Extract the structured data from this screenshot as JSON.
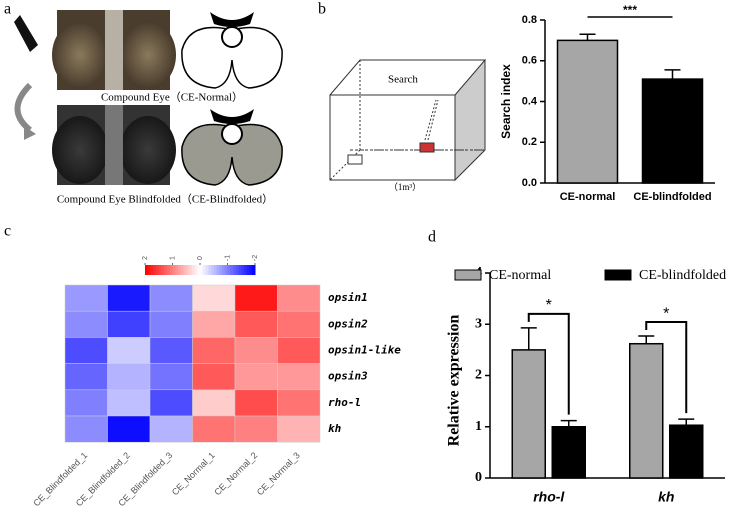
{
  "panel_labels": [
    "a",
    "b",
    "c",
    "d"
  ],
  "panel_a": {
    "caption_normal": "Compound Eye（CE-Normal）",
    "caption_blindfolded": "Compound Eye Blindfolded（CE-Blindfolded）"
  },
  "panel_b_diagram": {
    "box_label": "Search",
    "volume_label": "（1m³）"
  },
  "chart_data": [
    {
      "type": "bar",
      "ylabel": "Search index",
      "categories": [
        "CE-normal",
        "CE-blindfolded"
      ],
      "values": [
        0.7,
        0.51
      ],
      "errors": [
        0.03,
        0.045
      ],
      "colors": [
        "#a6a6a6",
        "#000000"
      ],
      "ylim": [
        0,
        0.8
      ],
      "yticks": [
        {
          "value": 0,
          "label": "0.0"
        },
        0.2,
        0.4,
        0.6,
        0.8
      ],
      "significance": "***"
    },
    {
      "type": "heatmap",
      "rows": [
        "opsin1",
        "opsin2",
        "opsin1-like",
        "opsin3",
        "rho-l",
        "kh"
      ],
      "columns": [
        "CE_Blindfolded_1",
        "CE_Blindfolded_2",
        "CE_Blindfolded_3",
        "CE_Normal_1",
        "CE_Normal_2",
        "CE_Normal_3"
      ],
      "values": [
        [
          -0.8,
          -1.8,
          -0.9,
          0.3,
          1.8,
          0.9
        ],
        [
          -0.9,
          -1.5,
          -1.0,
          0.7,
          1.3,
          1.1
        ],
        [
          -1.4,
          -0.4,
          -1.3,
          1.2,
          0.9,
          1.3
        ],
        [
          -1.2,
          -0.6,
          -1.1,
          1.3,
          0.8,
          0.8
        ],
        [
          -1.0,
          -0.5,
          -1.4,
          0.4,
          1.4,
          1.1
        ],
        [
          -0.9,
          -1.9,
          -0.6,
          1.1,
          1.0,
          0.6
        ]
      ],
      "clim": [
        2,
        -2
      ],
      "cticks": [
        2,
        1,
        0,
        -1,
        -2
      ],
      "high_color": "#ff0000",
      "low_color": "#0000ff"
    },
    {
      "type": "grouped_bar",
      "ylabel": "Relative expression",
      "categories": [
        "rho-l",
        "kh"
      ],
      "series": [
        {
          "name": "CE-normal",
          "color": "#a6a6a6",
          "values": [
            2.5,
            2.62
          ],
          "errors": [
            0.43,
            0.15
          ]
        },
        {
          "name": "CE-blindfolded",
          "color": "#000000",
          "values": [
            1.0,
            1.03
          ],
          "errors": [
            0.12,
            0.12
          ]
        }
      ],
      "ylim": [
        0,
        4
      ],
      "yticks": [
        0,
        1,
        2,
        3,
        4
      ],
      "significance": [
        "*",
        "*"
      ],
      "legend": "top"
    }
  ]
}
